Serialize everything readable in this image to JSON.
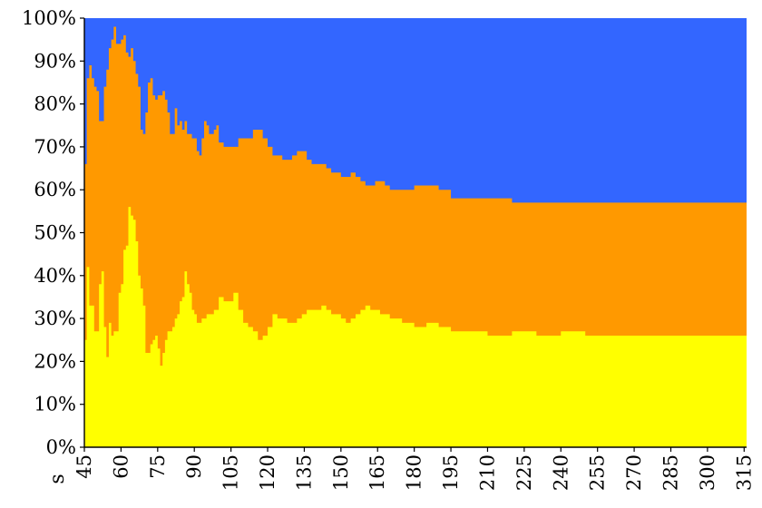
{
  "chart_data": {
    "type": "area",
    "stacked": "percent",
    "title": "",
    "xlabel": "s",
    "ylabel": "",
    "xlim": [
      45,
      316
    ],
    "ylim": [
      0,
      100
    ],
    "grid": false,
    "legend": "none",
    "x_ticks": [
      45,
      60,
      75,
      90,
      105,
      120,
      135,
      150,
      165,
      180,
      195,
      210,
      225,
      240,
      255,
      270,
      285,
      300,
      315
    ],
    "y_ticks": [
      0,
      10,
      20,
      30,
      40,
      50,
      60,
      70,
      80,
      90,
      100
    ],
    "y_tick_labels": [
      "0%",
      "10%",
      "20%",
      "30%",
      "40%",
      "50%",
      "60%",
      "70%",
      "80%",
      "90%",
      "100%"
    ],
    "colors": [
      "#ffff00",
      "#ff9900",
      "#3366ff"
    ],
    "bottom_boundary": {
      "x": [
        45,
        46,
        47,
        48,
        49,
        50,
        51,
        52,
        53,
        54,
        55,
        56,
        57,
        58,
        59,
        60,
        61,
        62,
        63,
        64,
        65,
        66,
        67,
        68,
        69,
        70,
        71,
        72,
        73,
        74,
        75,
        76,
        77,
        78,
        79,
        80,
        81,
        82,
        83,
        84,
        85,
        86,
        87,
        88,
        89,
        90,
        91,
        92,
        93,
        94,
        95,
        96,
        97,
        98,
        99,
        100,
        102,
        104,
        106,
        108,
        110,
        112,
        114,
        116,
        118,
        120,
        122,
        124,
        126,
        128,
        130,
        132,
        134,
        136,
        138,
        140,
        142,
        144,
        146,
        148,
        150,
        152,
        154,
        156,
        158,
        160,
        162,
        164,
        166,
        168,
        170,
        175,
        180,
        185,
        190,
        195,
        200,
        210,
        220,
        230,
        240,
        250,
        260,
        270,
        280,
        290,
        300,
        316
      ],
      "y": [
        25,
        42,
        33,
        33,
        27,
        27,
        38,
        41,
        28,
        21,
        29,
        26,
        27,
        27,
        36,
        38,
        46,
        47,
        56,
        54,
        53,
        48,
        40,
        37,
        33,
        22,
        22,
        24,
        25,
        26,
        23,
        19,
        22,
        25,
        27,
        27,
        28,
        30,
        31,
        34,
        35,
        41,
        38,
        36,
        32,
        31,
        29,
        29,
        30,
        30,
        31,
        31,
        31,
        32,
        32,
        35,
        34,
        34,
        36,
        32,
        29,
        28,
        27,
        25,
        26,
        28,
        31,
        30,
        30,
        29,
        29,
        30,
        31,
        32,
        32,
        32,
        33,
        32,
        31,
        31,
        30,
        29,
        30,
        31,
        32,
        33,
        32,
        32,
        31,
        31,
        30,
        29,
        28,
        29,
        28,
        27,
        27,
        26,
        27,
        26,
        27,
        26,
        26,
        26,
        26,
        26,
        26,
        26
      ]
    },
    "top_boundary": {
      "x": [
        45,
        46,
        47,
        48,
        49,
        50,
        51,
        52,
        53,
        54,
        55,
        56,
        57,
        58,
        59,
        60,
        61,
        62,
        63,
        64,
        65,
        66,
        67,
        68,
        69,
        70,
        71,
        72,
        73,
        74,
        75,
        76,
        77,
        78,
        79,
        80,
        81,
        82,
        83,
        84,
        85,
        86,
        87,
        88,
        89,
        90,
        91,
        92,
        93,
        94,
        95,
        96,
        97,
        98,
        99,
        100,
        102,
        104,
        106,
        108,
        110,
        112,
        114,
        116,
        118,
        120,
        122,
        124,
        126,
        128,
        130,
        132,
        134,
        136,
        138,
        140,
        142,
        144,
        146,
        148,
        150,
        152,
        154,
        156,
        158,
        160,
        162,
        164,
        166,
        168,
        170,
        175,
        180,
        185,
        190,
        195,
        200,
        210,
        220,
        230,
        240,
        250,
        260,
        270,
        280,
        290,
        300,
        316
      ],
      "y": [
        66,
        86,
        89,
        86,
        84,
        83,
        76,
        76,
        84,
        88,
        93,
        95,
        98,
        94,
        94,
        95,
        96,
        92,
        91,
        93,
        90,
        87,
        84,
        74,
        73,
        78,
        85,
        86,
        82,
        81,
        82,
        82,
        83,
        81,
        78,
        73,
        73,
        79,
        75,
        76,
        74,
        76,
        73,
        73,
        72,
        72,
        69,
        68,
        72,
        76,
        75,
        73,
        73,
        74,
        75,
        71,
        70,
        70,
        70,
        72,
        72,
        72,
        74,
        74,
        72,
        70,
        68,
        68,
        67,
        67,
        68,
        69,
        69,
        67,
        66,
        66,
        66,
        65,
        64,
        64,
        63,
        63,
        64,
        63,
        62,
        61,
        61,
        62,
        62,
        61,
        60,
        60,
        61,
        61,
        60,
        58,
        58,
        58,
        57,
        57,
        57,
        57,
        57,
        57,
        57,
        57,
        57,
        57
      ]
    }
  }
}
